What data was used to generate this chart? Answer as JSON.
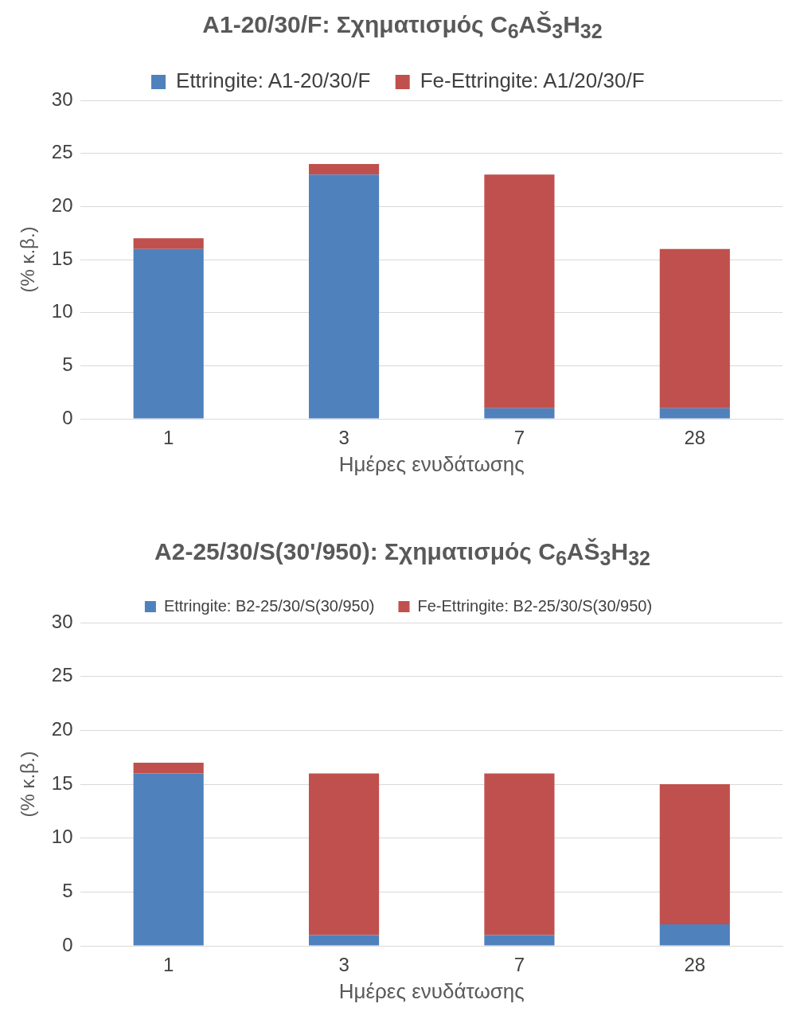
{
  "chart_data": [
    {
      "type": "bar",
      "title": "A1-20/30/F: Σχηματισμός  C$_{6}$AŠ$_{3}$H$_{32}$",
      "xlabel": "Ημέρες ενυδάτωσης",
      "ylabel": "(% κ.β.)",
      "categories": [
        "1",
        "3",
        "7",
        "28"
      ],
      "stacked": true,
      "series": [
        {
          "name": "Ettringite: A1-20/30/F",
          "color": "#4f81bd",
          "values": [
            16,
            23,
            1,
            1
          ]
        },
        {
          "name": "Fe-Ettringite: A1/20/30/F",
          "color": "#c0504d",
          "values": [
            1,
            1,
            22,
            15
          ]
        }
      ],
      "ylim": [
        0,
        30
      ],
      "yticks": [
        0,
        5,
        10,
        15,
        20,
        25,
        30
      ],
      "grid": "y",
      "legend": "top"
    },
    {
      "type": "bar",
      "title": "A2-25/30/S(30'/950): Σχηματισμός  C$_{6}$AŠ$_{3}$H$_{32}$",
      "xlabel": "Ημέρες ενυδάτωσης",
      "ylabel": "(% κ.β.)",
      "categories": [
        "1",
        "3",
        "7",
        "28"
      ],
      "stacked": true,
      "series": [
        {
          "name": "Ettringite: B2-25/30/S(30/950)",
          "color": "#4f81bd",
          "values": [
            16,
            1,
            1,
            2
          ]
        },
        {
          "name": "Fe-Ettringite: B2-25/30/S(30/950)",
          "color": "#c0504d",
          "values": [
            1,
            15,
            15,
            13
          ]
        }
      ],
      "ylim": [
        0,
        30
      ],
      "yticks": [
        0,
        5,
        10,
        15,
        20,
        25,
        30
      ],
      "grid": "y",
      "legend": "top"
    }
  ]
}
